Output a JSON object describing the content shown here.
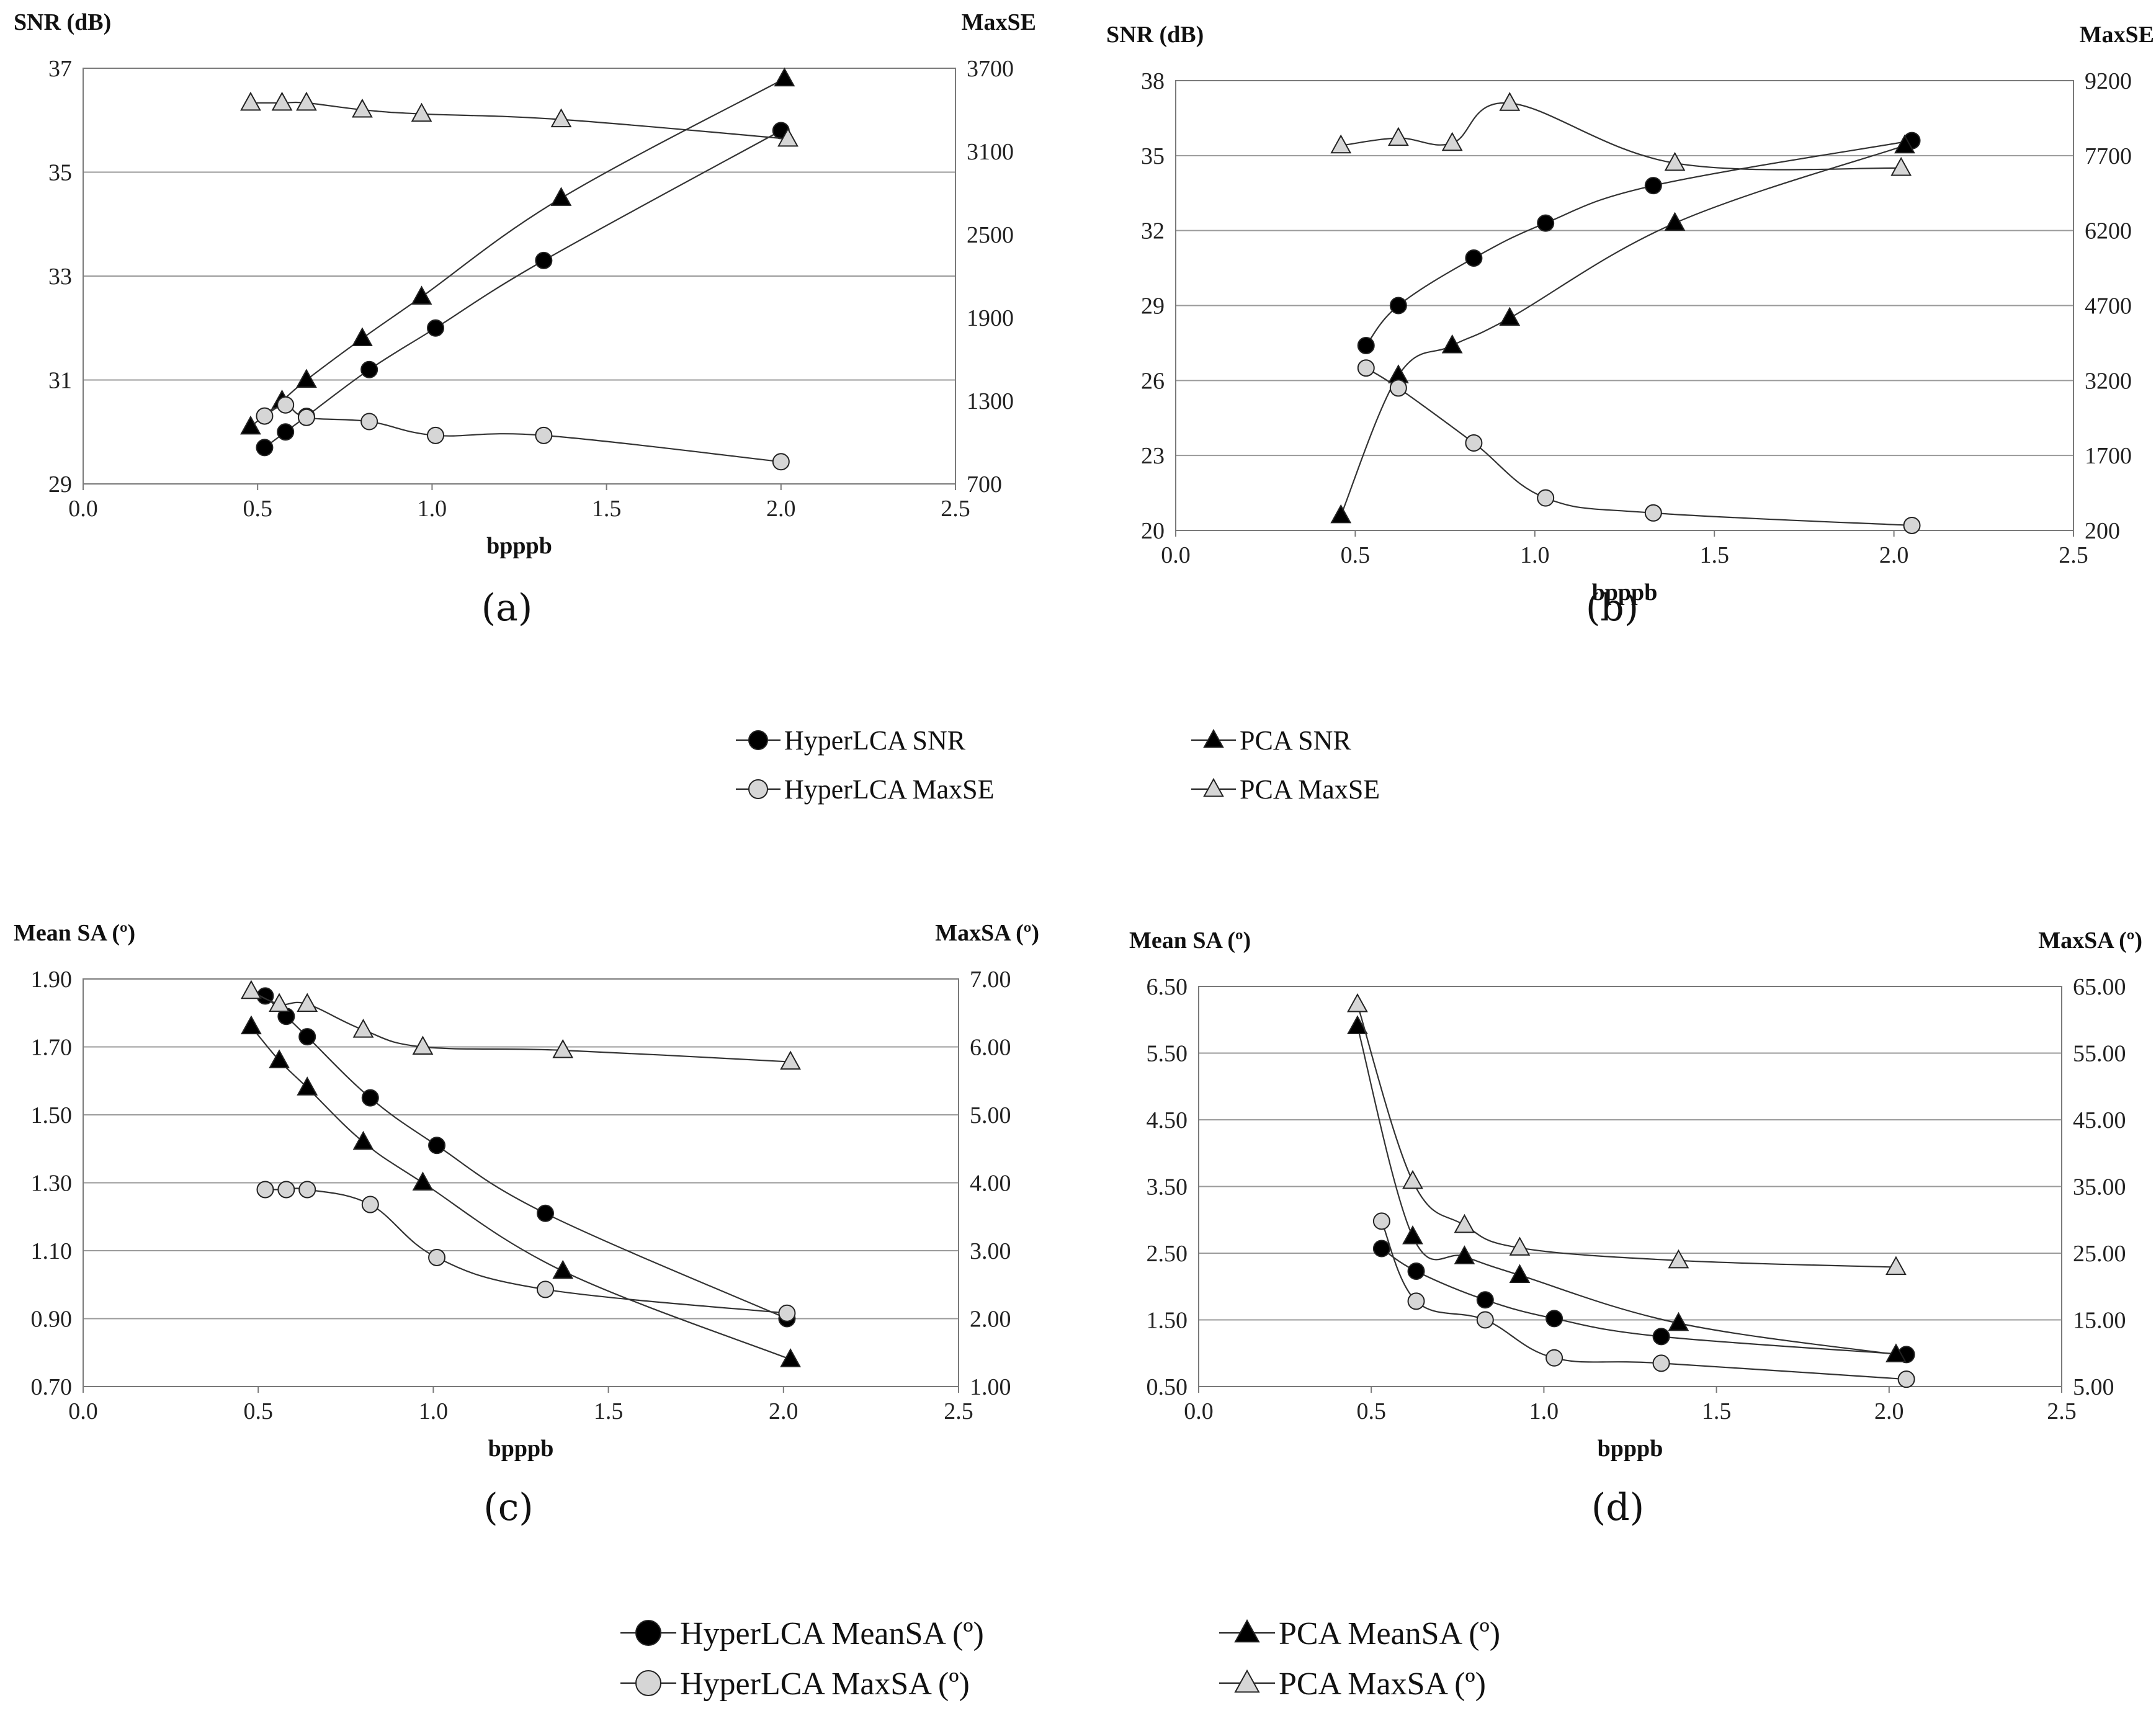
{
  "chart_data": [
    {
      "id": "a",
      "type": "line",
      "caption": "(a)",
      "xlabel": "bpppb",
      "ylabel_left": "SNR (dB)",
      "ylabel_right": "MaxSE",
      "xlim": [
        0,
        2.5
      ],
      "ylim_left": [
        29,
        37
      ],
      "ylim_right": [
        700,
        3700
      ],
      "xticks": [
        "0.0",
        "0.5",
        "1.0",
        "1.5",
        "2.0",
        "2.5"
      ],
      "yticks_left": [
        "29",
        "31",
        "33",
        "35",
        "37"
      ],
      "yticks_right": [
        "700",
        "1300",
        "1900",
        "2500",
        "3100",
        "3700"
      ],
      "series": [
        {
          "name": "HyperLCA SNR",
          "axis": "left",
          "marker": "circle",
          "fill": "#000000",
          "x": [
            0.52,
            0.58,
            0.64,
            0.82,
            1.01,
            1.32,
            2.0
          ],
          "y": [
            29.7,
            30.0,
            30.3,
            31.2,
            32.0,
            33.3,
            35.8
          ]
        },
        {
          "name": "PCA SNR",
          "axis": "left",
          "marker": "triangle",
          "fill": "#000000",
          "x": [
            0.48,
            0.57,
            0.64,
            0.8,
            0.97,
            1.37,
            2.01
          ],
          "y": [
            30.1,
            30.6,
            31.0,
            31.8,
            32.6,
            34.5,
            36.8
          ]
        },
        {
          "name": "HyperLCA MaxSE",
          "axis": "right",
          "marker": "circle",
          "fill": "#d6d6d6",
          "x": [
            0.52,
            0.58,
            0.64,
            0.82,
            1.01,
            1.32,
            2.0
          ],
          "y": [
            1190,
            1270,
            1180,
            1150,
            1050,
            1050,
            860
          ]
        },
        {
          "name": "PCA MaxSE",
          "axis": "right",
          "marker": "triangle",
          "fill": "#d6d6d6",
          "x": [
            0.48,
            0.57,
            0.64,
            0.8,
            0.97,
            1.37,
            2.02
          ],
          "y": [
            3450,
            3450,
            3450,
            3400,
            3370,
            3330,
            3190
          ]
        }
      ]
    },
    {
      "id": "b",
      "type": "line",
      "caption": "(b)",
      "xlabel": "bpppb",
      "ylabel_left": "SNR (dB)",
      "ylabel_right": "MaxSE",
      "xlim": [
        0,
        2.5
      ],
      "ylim_left": [
        20,
        38
      ],
      "ylim_right": [
        200,
        9200
      ],
      "xticks": [
        "0.0",
        "0.5",
        "1.0",
        "1.5",
        "2.0",
        "2.5"
      ],
      "yticks_left": [
        "20",
        "23",
        "26",
        "29",
        "32",
        "35",
        "38"
      ],
      "yticks_right": [
        "200",
        "1700",
        "3200",
        "4700",
        "6200",
        "7700",
        "9200"
      ],
      "series": [
        {
          "name": "HyperLCA SNR",
          "axis": "left",
          "marker": "circle",
          "fill": "#000000",
          "x": [
            0.53,
            0.62,
            0.83,
            1.03,
            1.33,
            2.05
          ],
          "y": [
            27.4,
            29.0,
            30.9,
            32.3,
            33.8,
            35.6
          ]
        },
        {
          "name": "PCA SNR",
          "axis": "left",
          "marker": "triangle",
          "fill": "#000000",
          "x": [
            0.46,
            0.62,
            0.77,
            0.93,
            1.39,
            2.03
          ],
          "y": [
            20.6,
            26.2,
            27.4,
            28.5,
            32.3,
            35.4
          ]
        },
        {
          "name": "HyperLCA MaxSE",
          "axis": "right",
          "marker": "circle",
          "fill": "#d6d6d6",
          "x": [
            0.53,
            0.62,
            0.83,
            1.03,
            1.33,
            2.05
          ],
          "y": [
            3450,
            3050,
            1950,
            850,
            550,
            300
          ]
        },
        {
          "name": "PCA MaxSE",
          "axis": "right",
          "marker": "triangle",
          "fill": "#d6d6d6",
          "x": [
            0.46,
            0.62,
            0.77,
            0.93,
            1.39,
            2.02
          ],
          "y": [
            7900,
            8050,
            7950,
            8750,
            7550,
            7450
          ]
        }
      ]
    },
    {
      "id": "c",
      "type": "line",
      "caption": "(c)",
      "xlabel": "bpppb",
      "ylabel_left": "Mean SA (º)",
      "ylabel_right": "MaxSA (º)",
      "xlim": [
        0,
        2.5
      ],
      "ylim_left": [
        0.7,
        1.9
      ],
      "ylim_right": [
        1.0,
        7.0
      ],
      "xticks": [
        "0.0",
        "0.5",
        "1.0",
        "1.5",
        "2.0",
        "2.5"
      ],
      "yticks_left": [
        "0.70",
        "0.90",
        "1.10",
        "1.30",
        "1.50",
        "1.70",
        "1.90"
      ],
      "yticks_right": [
        "1.00",
        "2.00",
        "3.00",
        "4.00",
        "5.00",
        "6.00",
        "7.00"
      ],
      "series": [
        {
          "name": "HyperLCA MeanSA (º)",
          "axis": "left",
          "marker": "circle",
          "fill": "#000000",
          "x": [
            0.52,
            0.58,
            0.64,
            0.82,
            1.01,
            1.32,
            2.01
          ],
          "y": [
            1.85,
            1.79,
            1.73,
            1.55,
            1.41,
            1.21,
            0.9
          ]
        },
        {
          "name": "PCA MeanSA (º)",
          "axis": "left",
          "marker": "triangle",
          "fill": "#000000",
          "x": [
            0.48,
            0.56,
            0.64,
            0.8,
            0.97,
            1.37,
            2.02
          ],
          "y": [
            1.76,
            1.66,
            1.58,
            1.42,
            1.3,
            1.04,
            0.78
          ]
        },
        {
          "name": "HyperLCA MaxSA (º)",
          "axis": "right",
          "marker": "circle",
          "fill": "#d6d6d6",
          "x": [
            0.52,
            0.58,
            0.64,
            0.82,
            1.01,
            1.32,
            2.01
          ],
          "y": [
            3.9,
            3.9,
            3.9,
            3.68,
            2.9,
            2.43,
            2.08
          ]
        },
        {
          "name": "PCA MaxSA (º)",
          "axis": "right",
          "marker": "triangle",
          "fill": "#d6d6d6",
          "x": [
            0.48,
            0.56,
            0.64,
            0.8,
            0.97,
            1.37,
            2.02
          ],
          "y": [
            6.82,
            6.63,
            6.63,
            6.25,
            6.0,
            5.95,
            5.78
          ]
        }
      ]
    },
    {
      "id": "d",
      "type": "line",
      "caption": "(d)",
      "xlabel": "bpppb",
      "ylabel_left": "Mean SA (º)",
      "ylabel_right": "MaxSA (º)",
      "xlim": [
        0,
        2.5
      ],
      "ylim_left": [
        0.5,
        6.5
      ],
      "ylim_right": [
        5.0,
        65.0
      ],
      "xticks": [
        "0.0",
        "0.5",
        "1.0",
        "1.5",
        "2.0",
        "2.5"
      ],
      "yticks_left": [
        "0.50",
        "1.50",
        "2.50",
        "3.50",
        "4.50",
        "5.50",
        "6.50"
      ],
      "yticks_right": [
        "5.00",
        "15.00",
        "25.00",
        "35.00",
        "45.00",
        "55.00",
        "65.00"
      ],
      "series": [
        {
          "name": "HyperLCA MeanSA (º)",
          "axis": "left",
          "marker": "circle",
          "fill": "#000000",
          "x": [
            0.53,
            0.63,
            0.83,
            1.03,
            1.34,
            2.05
          ],
          "y": [
            2.57,
            2.23,
            1.8,
            1.52,
            1.25,
            0.98
          ]
        },
        {
          "name": "PCA MeanSA (º)",
          "axis": "left",
          "marker": "triangle",
          "fill": "#000000",
          "x": [
            0.46,
            0.62,
            0.77,
            0.93,
            1.39,
            2.02
          ],
          "y": [
            5.9,
            2.75,
            2.45,
            2.17,
            1.45,
            0.98
          ]
        },
        {
          "name": "HyperLCA MaxSA (º)",
          "axis": "right",
          "marker": "circle",
          "fill": "#d6d6d6",
          "x": [
            0.53,
            0.63,
            0.83,
            1.03,
            1.34,
            2.05
          ],
          "y": [
            29.8,
            17.8,
            15.0,
            9.3,
            8.5,
            6.1
          ]
        },
        {
          "name": "PCA MaxSA (º)",
          "axis": "right",
          "marker": "triangle",
          "fill": "#d6d6d6",
          "x": [
            0.46,
            0.62,
            0.77,
            0.93,
            1.39,
            2.02
          ],
          "y": [
            62.3,
            35.8,
            29.2,
            25.8,
            23.9,
            22.9
          ]
        }
      ]
    }
  ],
  "legends": {
    "top": [
      "HyperLCA SNR",
      "PCA SNR",
      "HyperLCA MaxSE",
      "PCA MaxSE"
    ],
    "bottom": [
      "HyperLCA MeanSA (º)",
      "PCA MeanSA (º)",
      "HyperLCA MaxSA (º)",
      "PCA MaxSA (º)"
    ]
  }
}
